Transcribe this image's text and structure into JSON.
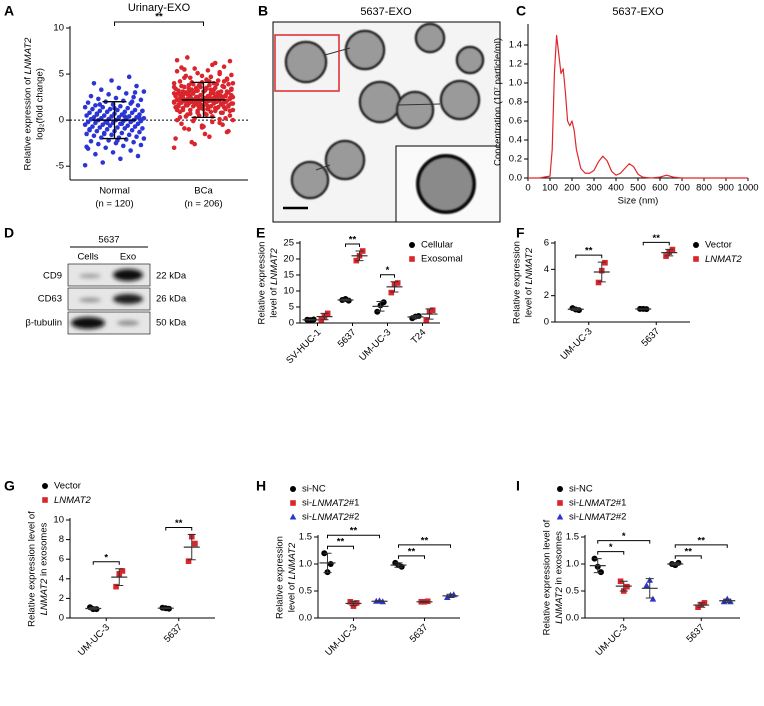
{
  "chart_data": [
    {
      "panel": "A",
      "type": "strip",
      "title": "Urinary-EXO",
      "ylabel": [
        "Relative expression of LNMAT2",
        "log₂(fold change)"
      ],
      "categories": [
        "Normal",
        "BCa"
      ],
      "category_notes": [
        "(n = 120)",
        "(n = 206)"
      ],
      "significance": "**",
      "hline": 0,
      "ylim": [
        -6.5,
        10
      ],
      "yticks": [
        -5,
        0,
        5,
        10
      ],
      "groups": [
        {
          "color": "#2b35d6",
          "mean": 0,
          "sd": 2.0,
          "values": [
            -4.9,
            -4.6,
            -4.2,
            -3.9,
            -3.7,
            -3.5,
            -3.3,
            -3.1,
            -3.0,
            -2.8,
            -2.7,
            -2.6,
            -2.5,
            -2.4,
            -2.3,
            -2.2,
            -2.1,
            -2.0,
            -1.9,
            -1.9,
            -1.8,
            -1.7,
            -1.6,
            -1.6,
            -1.5,
            -1.4,
            -1.4,
            -1.3,
            -1.2,
            -1.2,
            -1.1,
            -1.0,
            -1.0,
            -0.9,
            -0.9,
            -0.8,
            -0.8,
            -0.7,
            -0.7,
            -0.6,
            -0.6,
            -0.5,
            -0.5,
            -0.4,
            -0.4,
            -0.3,
            -0.3,
            -0.2,
            -0.2,
            -0.2,
            -0.1,
            -0.1,
            0.0,
            0.0,
            0.0,
            0.1,
            0.1,
            0.1,
            0.2,
            0.2,
            0.3,
            0.3,
            0.3,
            0.4,
            0.4,
            0.5,
            0.5,
            0.6,
            0.6,
            0.7,
            0.7,
            0.8,
            0.8,
            0.9,
            0.9,
            1.0,
            1.0,
            1.1,
            1.1,
            1.2,
            1.2,
            1.3,
            1.4,
            1.4,
            1.5,
            1.6,
            1.6,
            1.7,
            1.8,
            1.9,
            2.0,
            2.1,
            2.2,
            2.3,
            2.4,
            2.5,
            2.6,
            2.8,
            2.9,
            3.1,
            3.3,
            3.5,
            3.7,
            4.0,
            4.3,
            4.7,
            -2.9,
            -1.5,
            -0.4,
            0.2,
            0.6,
            1.3,
            2.0,
            -1.1,
            -0.3,
            0.4,
            1.0,
            1.7,
            -2.2,
            3.0
          ]
        },
        {
          "color": "#d9252b",
          "mean": 2.2,
          "sd": 1.9,
          "values": [
            -3.0,
            -2.4,
            -1.8,
            -1.3,
            -0.9,
            -0.6,
            -0.3,
            0.0,
            0.2,
            0.4,
            0.5,
            0.6,
            0.7,
            0.8,
            0.9,
            1.0,
            1.0,
            1.1,
            1.1,
            1.2,
            1.2,
            1.3,
            1.3,
            1.4,
            1.4,
            1.5,
            1.5,
            1.5,
            1.6,
            1.6,
            1.7,
            1.7,
            1.7,
            1.8,
            1.8,
            1.8,
            1.9,
            1.9,
            1.9,
            2.0,
            2.0,
            2.0,
            2.0,
            2.1,
            2.1,
            2.1,
            2.2,
            2.2,
            2.2,
            2.2,
            2.3,
            2.3,
            2.3,
            2.4,
            2.4,
            2.4,
            2.5,
            2.5,
            2.5,
            2.6,
            2.6,
            2.6,
            2.7,
            2.7,
            2.8,
            2.8,
            2.9,
            2.9,
            3.0,
            3.0,
            3.1,
            3.1,
            3.2,
            3.2,
            3.3,
            3.4,
            3.4,
            3.5,
            3.6,
            3.7,
            3.8,
            3.9,
            4.0,
            4.1,
            4.2,
            4.4,
            4.6,
            4.8,
            5.0,
            5.3,
            5.6,
            6.0,
            6.4,
            6.8,
            -1.5,
            -0.5,
            0.3,
            0.8,
            1.3,
            1.8,
            2.1,
            2.4,
            2.7,
            3.1,
            3.6,
            4.3,
            -2.0,
            -0.1,
            0.9,
            1.6,
            2.0,
            2.3,
            2.6,
            3.0,
            3.5,
            4.0,
            4.9,
            -1.0,
            0.6,
            1.4,
            1.9,
            2.2,
            2.5,
            2.9,
            3.3,
            3.8,
            4.5,
            5.5,
            -0.8,
            0.1,
            1.1,
            1.7,
            2.1,
            2.4,
            2.8,
            3.2,
            3.7,
            4.2,
            5.1,
            6.2,
            0.0,
            0.7,
            1.5,
            2.0,
            2.4,
            2.7,
            3.0,
            3.4,
            3.9,
            4.7,
            -1.2,
            0.4,
            1.2,
            1.8,
            2.2,
            2.5,
            2.9,
            3.3,
            3.8,
            4.4,
            5.8,
            -0.4,
            0.5,
            1.3,
            1.9,
            2.3,
            2.6,
            3.1,
            3.6,
            4.1,
            5.2,
            6.5,
            -2.6,
            -0.2,
            1.0,
            1.6,
            2.1,
            2.5,
            2.8,
            3.2,
            3.5,
            4.0,
            4.6,
            5.4,
            0.2,
            1.1,
            1.7,
            2.2,
            2.6,
            2.9,
            3.3,
            3.9,
            4.8,
            -0.7,
            0.8,
            1.5,
            2.0,
            2.4,
            2.7,
            3.0,
            3.4,
            4.2,
            5.7,
            1.4,
            2.1,
            3.6
          ]
        }
      ]
    },
    {
      "panel": "C",
      "type": "line",
      "title": "5637-EXO",
      "xlabel": "Size (nm)",
      "ylabel": [
        "Concentration (10⁷ particle/ml)"
      ],
      "color": "#e0262b",
      "xlim": [
        0,
        1000
      ],
      "xticks": [
        0,
        100,
        200,
        300,
        400,
        500,
        600,
        700,
        800,
        900,
        1000
      ],
      "ylim": [
        0,
        1.6
      ],
      "yticks": [
        {
          "value": 0,
          "label": "0.0"
        },
        0.2,
        0.4,
        0.6,
        0.8,
        {
          "value": 1,
          "label": "1.0"
        },
        1.2,
        1.4
      ],
      "x": [
        0,
        50,
        100,
        110,
        120,
        130,
        140,
        150,
        160,
        170,
        180,
        190,
        200,
        210,
        220,
        240,
        260,
        280,
        300,
        320,
        340,
        360,
        380,
        400,
        420,
        440,
        460,
        480,
        500,
        520,
        560,
        600,
        630,
        660,
        700,
        800,
        900,
        1000
      ],
      "values": [
        0,
        0,
        0.02,
        0.3,
        1.1,
        1.5,
        1.3,
        1.1,
        1.15,
        0.9,
        0.6,
        0.55,
        0.6,
        0.5,
        0.3,
        0.1,
        0.05,
        0.05,
        0.08,
        0.17,
        0.23,
        0.18,
        0.07,
        0.03,
        0.05,
        0.1,
        0.15,
        0.12,
        0.04,
        0.01,
        0.0,
        0.01,
        0.03,
        0.01,
        0,
        0,
        0,
        0
      ]
    },
    {
      "panel": "E",
      "type": "dot",
      "ylabel": [
        "Relative expression",
        "level of LNMAT2"
      ],
      "legend": "upper right",
      "categories": [
        "SV-HUC-1",
        "5637",
        "UM-UC-3",
        "T24"
      ],
      "ylim": [
        0,
        25
      ],
      "yticks": [
        0,
        5,
        10,
        15,
        20,
        25
      ],
      "series": [
        {
          "name": "Cellular",
          "color": "#000000",
          "marker": "circle",
          "values": [
            [
              1.0,
              0.9,
              1.1
            ],
            [
              7.2,
              7.5,
              7.0
            ],
            [
              3.5,
              5.5,
              6.5
            ],
            [
              1.5,
              2.0,
              2.2
            ]
          ],
          "mean": [
            1.0,
            7.2,
            5.2,
            1.9
          ],
          "sd": [
            0.1,
            0.3,
            1.5,
            0.4
          ]
        },
        {
          "name": "Exosomal",
          "color": "#d9252b",
          "marker": "square",
          "values": [
            [
              1.0,
              2.0,
              3.0
            ],
            [
              19.5,
              21.0,
              22.5
            ],
            [
              9.5,
              12.0,
              12.5
            ],
            [
              1.0,
              3.5,
              4.0
            ]
          ],
          "mean": [
            2.0,
            21.0,
            11.3,
            2.8
          ],
          "sd": [
            1.0,
            1.5,
            1.6,
            1.6
          ],
          "sig": [
            null,
            "**",
            "*",
            null
          ]
        }
      ]
    },
    {
      "panel": "F",
      "type": "dot",
      "ylabel": [
        "Relative expression",
        "level of LNMAT2"
      ],
      "legend": "right",
      "categories": [
        "UM-UC-3",
        "5637"
      ],
      "ylim": [
        0,
        6
      ],
      "yticks": [
        0,
        2,
        4,
        6
      ],
      "series": [
        {
          "name": "Vector",
          "color": "#000000",
          "marker": "circle",
          "values": [
            [
              1.05,
              0.95,
              0.9
            ],
            [
              1.0,
              1.0,
              0.98
            ]
          ],
          "mean": [
            0.97,
            0.99
          ],
          "sd": [
            0.08,
            0.01
          ]
        },
        {
          "name": "LNMAT2",
          "color": "#d9252b",
          "marker": "square",
          "values": [
            [
              3.0,
              3.9,
              4.5
            ],
            [
              5.0,
              5.3,
              5.5
            ]
          ],
          "mean": [
            3.8,
            5.27
          ],
          "sd": [
            0.75,
            0.25
          ],
          "sig": [
            "**",
            "**"
          ]
        }
      ]
    },
    {
      "panel": "G",
      "type": "dot",
      "ylabel": [
        "Relative expression level of",
        "LNMAT2 in exosomes"
      ],
      "legend": "upper left",
      "categories": [
        "UM-UC-3",
        "5637"
      ],
      "ylim": [
        0,
        10
      ],
      "yticks": [
        0,
        2,
        4,
        6,
        8,
        10
      ],
      "series": [
        {
          "name": "Vector",
          "color": "#000000",
          "marker": "circle",
          "values": [
            [
              1.1,
              0.9,
              0.9
            ],
            [
              1.05,
              1.0,
              0.95
            ]
          ],
          "mean": [
            0.97,
            1.0
          ],
          "sd": [
            0.12,
            0.05
          ]
        },
        {
          "name": "LNMAT2",
          "color": "#d9252b",
          "marker": "square",
          "values": [
            [
              3.2,
              4.5,
              4.8
            ],
            [
              5.8,
              8.3,
              7.6
            ]
          ],
          "mean": [
            4.17,
            7.23
          ],
          "sd": [
            0.85,
            1.29
          ],
          "sig": [
            "*",
            "**"
          ]
        }
      ]
    },
    {
      "panel": "H",
      "type": "dot",
      "ylabel": [
        "Relative expression",
        "level of LNMAT2"
      ],
      "legend": "upper left",
      "categories": [
        "UM-UC-3",
        "5637"
      ],
      "ylim": [
        0,
        1.5
      ],
      "yticks": [
        {
          "value": 0,
          "label": "0.0"
        },
        0.5,
        {
          "value": 1,
          "label": "1.0"
        },
        1.5
      ],
      "series": [
        {
          "name": "si-NC",
          "color": "#000000",
          "marker": "circle",
          "values": [
            [
              1.2,
              0.85,
              1.0
            ],
            [
              1.02,
              0.98,
              0.95
            ]
          ],
          "mean": [
            1.02,
            0.98
          ],
          "sd": [
            0.18,
            0.04
          ]
        },
        {
          "name": "si-LNMAT2#1",
          "color": "#d9252b",
          "marker": "square",
          "values": [
            [
              0.3,
              0.22,
              0.28
            ],
            [
              0.3,
              0.3,
              0.31
            ]
          ],
          "mean": [
            0.27,
            0.3
          ],
          "sd": [
            0.04,
            0.01
          ],
          "sig": [
            "**",
            "**"
          ]
        },
        {
          "name": "si-LNMAT2#2",
          "color": "#2b35d6",
          "marker": "triangle",
          "values": [
            [
              0.31,
              0.32,
              0.3
            ],
            [
              0.38,
              0.42,
              0.43
            ]
          ],
          "mean": [
            0.31,
            0.41
          ],
          "sd": [
            0.01,
            0.03
          ],
          "sig": [
            "**",
            "**"
          ]
        }
      ]
    },
    {
      "panel": "I",
      "type": "dot",
      "ylabel": [
        "Relative expression level of",
        "LNMAT2 in exosomes"
      ],
      "legend": "upper left",
      "categories": [
        "UM-UC-3",
        "5637"
      ],
      "ylim": [
        0,
        1.5
      ],
      "yticks": [
        {
          "value": 0,
          "label": "0.0"
        },
        0.5,
        {
          "value": 1,
          "label": "1.0"
        },
        1.5
      ],
      "series": [
        {
          "name": "si-NC",
          "color": "#000000",
          "marker": "circle",
          "values": [
            [
              1.1,
              0.95,
              0.85
            ],
            [
              1.0,
              0.98,
              1.02
            ]
          ],
          "mean": [
            0.97,
            1.0
          ],
          "sd": [
            0.13,
            0.02
          ]
        },
        {
          "name": "si-LNMAT2#1",
          "color": "#d9252b",
          "marker": "square",
          "values": [
            [
              0.68,
              0.5,
              0.58
            ],
            [
              0.2,
              0.25,
              0.28
            ]
          ],
          "mean": [
            0.59,
            0.24
          ],
          "sd": [
            0.09,
            0.04
          ],
          "sig": [
            "*",
            "**"
          ]
        },
        {
          "name": "si-LNMAT2#2",
          "color": "#2b35d6",
          "marker": "triangle",
          "values": [
            [
              0.6,
              0.7,
              0.35
            ],
            [
              0.3,
              0.35,
              0.3
            ]
          ],
          "mean": [
            0.55,
            0.32
          ],
          "sd": [
            0.18,
            0.03
          ],
          "sig": [
            "*",
            "**"
          ]
        }
      ]
    }
  ],
  "image_panel": {
    "panel": "B",
    "title": "5637-EXO"
  },
  "blot": {
    "panel": "D",
    "cell_line": "5637",
    "lanes": [
      "Cells",
      "Exo"
    ],
    "rows": [
      {
        "label": "CD9",
        "size": "22 kDa"
      },
      {
        "label": "CD63",
        "size": "26 kDa"
      },
      {
        "label": "β-tubulin",
        "size": "50 kDa"
      }
    ]
  }
}
